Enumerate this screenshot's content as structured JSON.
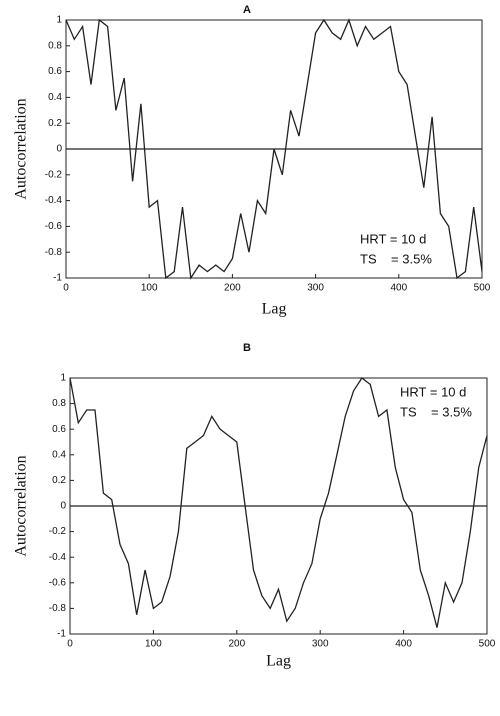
{
  "chart_data": [
    {
      "type": "line",
      "title": "A",
      "x_label": "Lag",
      "y_label": "Autocorrelation",
      "annotations": [
        "HRT = 10 d",
        "TS    = 3.5%"
      ],
      "x": [
        0,
        10,
        20,
        30,
        40,
        50,
        60,
        70,
        80,
        90,
        100,
        110,
        120,
        130,
        140,
        150,
        160,
        170,
        180,
        190,
        200,
        210,
        220,
        230,
        240,
        250,
        260,
        270,
        280,
        290,
        300,
        310,
        320,
        330,
        340,
        350,
        360,
        370,
        380,
        390,
        400,
        410,
        420,
        430,
        440,
        450,
        460,
        470,
        480,
        490,
        500
      ],
      "series": [
        {
          "color": "#222222",
          "values": [
            1,
            0.85,
            0.95,
            0.5,
            1,
            0.95,
            0.3,
            0.55,
            -0.25,
            0.35,
            -0.45,
            -0.4,
            -1,
            -0.95,
            -0.45,
            -1,
            -0.9,
            -0.95,
            -0.9,
            -0.95,
            -0.85,
            -0.5,
            -0.8,
            -0.4,
            -0.5,
            0,
            -0.2,
            0.3,
            0.1,
            0.5,
            0.9,
            1,
            0.9,
            0.85,
            1,
            0.8,
            0.95,
            0.85,
            0.9,
            0.95,
            0.6,
            0.5,
            0.1,
            -0.3,
            0.25,
            -0.5,
            -0.6,
            -1,
            -0.95,
            -0.45,
            -0.95
          ]
        }
      ],
      "xlim": [
        0,
        500
      ],
      "xticks": [
        0,
        100,
        200,
        300,
        400,
        500
      ],
      "ylim": [
        -1,
        1
      ],
      "yticks": [
        -1,
        -0.8,
        -0.6,
        -0.4,
        -0.2,
        0,
        0.2,
        0.4,
        0.6,
        0.8,
        1
      ]
    },
    {
      "type": "line",
      "title": "B",
      "x_label": "Lag",
      "y_label": "Autocorrelation",
      "annotations": [
        "HRT = 10 d",
        "TS    = 3.5%"
      ],
      "x": [
        0,
        10,
        20,
        30,
        40,
        50,
        60,
        70,
        80,
        90,
        100,
        110,
        120,
        130,
        140,
        150,
        160,
        170,
        180,
        190,
        200,
        210,
        220,
        230,
        240,
        250,
        260,
        270,
        280,
        290,
        300,
        310,
        320,
        330,
        340,
        350,
        360,
        370,
        380,
        390,
        400,
        410,
        420,
        430,
        440,
        450,
        460,
        470,
        480,
        490,
        500
      ],
      "series": [
        {
          "color": "#222222",
          "values": [
            1,
            0.65,
            0.75,
            0.75,
            0.1,
            0.05,
            -0.3,
            -0.45,
            -0.85,
            -0.5,
            -0.8,
            -0.75,
            -0.55,
            -0.2,
            0.45,
            0.5,
            0.55,
            0.7,
            0.6,
            0.55,
            0.5,
            0,
            -0.5,
            -0.7,
            -0.8,
            -0.65,
            -0.9,
            -0.8,
            -0.6,
            -0.45,
            -0.1,
            0.1,
            0.4,
            0.7,
            0.9,
            1,
            0.95,
            0.7,
            0.75,
            0.3,
            0.05,
            -0.05,
            -0.5,
            -0.7,
            -0.95,
            -0.6,
            -0.75,
            -0.6,
            -0.2,
            0.3,
            0.55
          ]
        }
      ],
      "xlim": [
        0,
        500
      ],
      "xticks": [
        0,
        100,
        200,
        300,
        400,
        500
      ],
      "ylim": [
        -1,
        1
      ],
      "yticks": [
        -1,
        -0.8,
        -0.6,
        -0.4,
        -0.2,
        0,
        0.2,
        0.4,
        0.6,
        0.8,
        1
      ]
    }
  ]
}
